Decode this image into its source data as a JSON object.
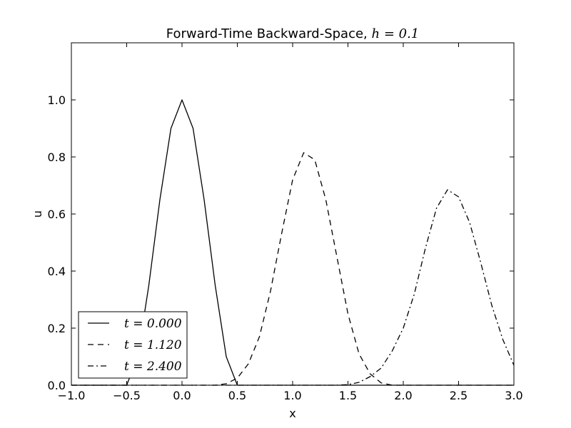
{
  "chart_data": {
    "type": "line",
    "title": "Forward-Time Backward-Space, ",
    "title_math": "h = 0.1",
    "xlabel": "x",
    "ylabel": "u",
    "xlim": [
      -1.0,
      3.0
    ],
    "ylim": [
      0.0,
      1.2
    ],
    "xticks": [
      -1.0,
      -0.5,
      0.0,
      0.5,
      1.0,
      1.5,
      2.0,
      2.5,
      3.0
    ],
    "xtick_labels": [
      "−1.0",
      "−0.5",
      "0.0",
      "0.5",
      "1.0",
      "1.5",
      "2.0",
      "2.5",
      "3.0"
    ],
    "yticks": [
      0.0,
      0.2,
      0.4,
      0.6,
      0.8,
      1.0
    ],
    "ytick_labels": [
      "0.0",
      "0.2",
      "0.4",
      "0.6",
      "0.8",
      "1.0"
    ],
    "grid": false,
    "legend_position": "lower-left",
    "color": "#000000",
    "series": [
      {
        "name": "t = 0.000",
        "style": "solid",
        "x": [
          -1.0,
          -0.9,
          -0.8,
          -0.7,
          -0.6,
          -0.5,
          -0.4,
          -0.3,
          -0.2,
          -0.1,
          0.0,
          0.1,
          0.2,
          0.3,
          0.4,
          0.5,
          0.6,
          0.7,
          0.8,
          0.9,
          1.0,
          1.1,
          1.2,
          1.3,
          1.4,
          1.5,
          1.6,
          1.7,
          1.8,
          1.9,
          2.0,
          2.1,
          2.2,
          2.3,
          2.4,
          2.5,
          2.6,
          2.7,
          2.8,
          2.9,
          3.0
        ],
        "y": [
          0.0,
          0.0,
          0.0,
          0.0,
          0.0,
          0.0,
          0.1,
          0.35,
          0.65,
          0.9,
          1.0,
          0.9,
          0.65,
          0.35,
          0.1,
          0.0,
          0.0,
          0.0,
          0.0,
          0.0,
          0.0,
          0.0,
          0.0,
          0.0,
          0.0,
          0.0,
          0.0,
          0.0,
          0.0,
          0.0,
          0.0,
          0.0,
          0.0,
          0.0,
          0.0,
          0.0,
          0.0,
          0.0,
          0.0,
          0.0,
          0.0
        ]
      },
      {
        "name": "t = 1.120",
        "style": "dashed",
        "x": [
          -1.0,
          -0.9,
          -0.8,
          -0.7,
          -0.6,
          -0.5,
          -0.4,
          -0.3,
          -0.2,
          -0.1,
          0.0,
          0.1,
          0.2,
          0.3,
          0.4,
          0.5,
          0.6,
          0.7,
          0.8,
          0.9,
          1.0,
          1.1,
          1.2,
          1.3,
          1.4,
          1.5,
          1.6,
          1.7,
          1.8,
          1.9,
          2.0,
          2.1,
          2.2,
          2.3,
          2.4,
          2.5,
          2.6,
          2.7,
          2.8,
          2.9,
          3.0
        ],
        "y": [
          0.0,
          0.0,
          0.0,
          0.0,
          0.0,
          0.0,
          0.0,
          0.0,
          0.0,
          0.0,
          0.0,
          0.0,
          0.0,
          0.0,
          0.005,
          0.025,
          0.075,
          0.17,
          0.33,
          0.53,
          0.72,
          0.815,
          0.79,
          0.65,
          0.45,
          0.25,
          0.11,
          0.04,
          0.008,
          0.0,
          0.0,
          0.0,
          0.0,
          0.0,
          0.0,
          0.0,
          0.0,
          0.0,
          0.0,
          0.0,
          0.0
        ]
      },
      {
        "name": "t = 2.400",
        "style": "dashdot",
        "x": [
          -1.0,
          -0.9,
          -0.8,
          -0.7,
          -0.6,
          -0.5,
          -0.4,
          -0.3,
          -0.2,
          -0.1,
          0.0,
          0.1,
          0.2,
          0.3,
          0.4,
          0.5,
          0.6,
          0.7,
          0.8,
          0.9,
          1.0,
          1.1,
          1.2,
          1.3,
          1.4,
          1.5,
          1.6,
          1.7,
          1.8,
          1.9,
          2.0,
          2.1,
          2.2,
          2.3,
          2.4,
          2.5,
          2.6,
          2.7,
          2.8,
          2.9,
          3.0
        ],
        "y": [
          0.0,
          0.0,
          0.0,
          0.0,
          0.0,
          0.0,
          0.0,
          0.0,
          0.0,
          0.0,
          0.0,
          0.0,
          0.0,
          0.0,
          0.0,
          0.0,
          0.0,
          0.0,
          0.0,
          0.0,
          0.0,
          0.0,
          0.0,
          0.0,
          0.0,
          0.002,
          0.01,
          0.03,
          0.06,
          0.12,
          0.2,
          0.32,
          0.48,
          0.62,
          0.685,
          0.66,
          0.57,
          0.43,
          0.28,
          0.16,
          0.07
        ]
      }
    ]
  }
}
